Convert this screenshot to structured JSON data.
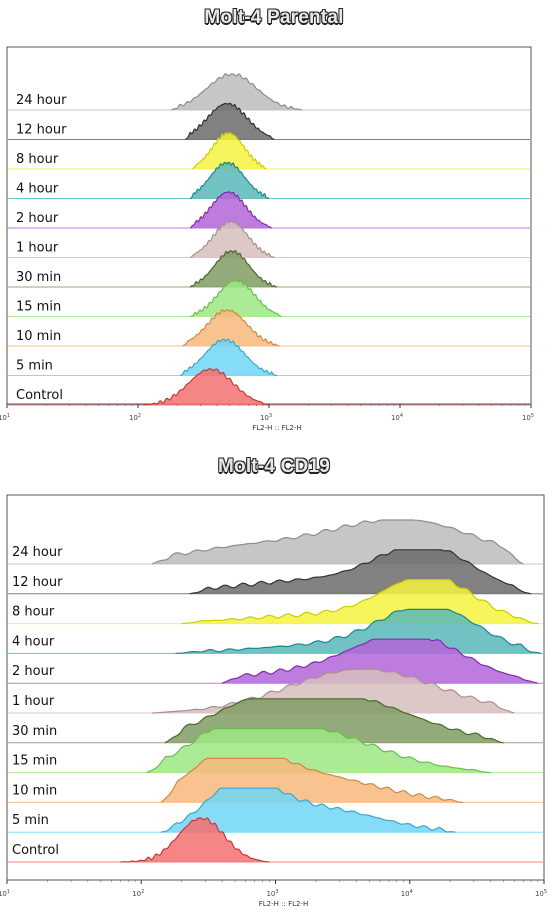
{
  "chart_data": [
    {
      "type": "area",
      "title": "Molt-4 Parental",
      "xlabel": "FL2-H :: FL2-H",
      "xscale": "log",
      "xlim": [
        10,
        100000
      ],
      "x_ticks": [
        {
          "value": 10,
          "base": "10",
          "exp": "1"
        },
        {
          "value": 100,
          "base": "10",
          "exp": "2"
        },
        {
          "value": 1000,
          "base": "10",
          "exp": "3"
        },
        {
          "value": 10000,
          "base": "10",
          "exp": "4"
        },
        {
          "value": 100000,
          "base": "10",
          "exp": "5"
        }
      ],
      "series": [
        {
          "name": "24 hour",
          "color": "#a6a6a6",
          "peaks": [
            {
              "mode": 520,
              "sigma": 0.19,
              "amp": 1.0
            }
          ],
          "range": [
            180,
            1800
          ]
        },
        {
          "name": "12 hour",
          "color": "#3a3a3a",
          "peaks": [
            {
              "mode": 480,
              "sigma": 0.15,
              "amp": 1.0
            }
          ],
          "range": [
            230,
            1100
          ]
        },
        {
          "name": "8 hour",
          "color": "#f0f000",
          "peaks": [
            {
              "mode": 490,
              "sigma": 0.12,
              "amp": 1.0
            }
          ],
          "range": [
            260,
            950
          ]
        },
        {
          "name": "4 hour",
          "color": "#20a0a0",
          "peaks": [
            {
              "mode": 480,
              "sigma": 0.13,
              "amp": 1.0
            }
          ],
          "range": [
            250,
            1000
          ]
        },
        {
          "name": "2 hour",
          "color": "#9932cc",
          "peaks": [
            {
              "mode": 490,
              "sigma": 0.13,
              "amp": 1.0
            }
          ],
          "range": [
            250,
            1050
          ]
        },
        {
          "name": "1 hour",
          "color": "#c9a8a8",
          "peaks": [
            {
              "mode": 510,
              "sigma": 0.13,
              "amp": 1.0
            }
          ],
          "range": [
            250,
            1100
          ]
        },
        {
          "name": "30 min",
          "color": "#557a30",
          "peaks": [
            {
              "mode": 520,
              "sigma": 0.13,
              "amp": 1.0
            }
          ],
          "range": [
            250,
            1150
          ]
        },
        {
          "name": "15 min",
          "color": "#7ee05a",
          "peaks": [
            {
              "mode": 560,
              "sigma": 0.14,
              "amp": 1.0
            }
          ],
          "range": [
            250,
            1250
          ]
        },
        {
          "name": "10 min",
          "color": "#f5a050",
          "peaks": [
            {
              "mode": 480,
              "sigma": 0.15,
              "amp": 1.0
            }
          ],
          "range": [
            220,
            1200
          ]
        },
        {
          "name": "5 min",
          "color": "#40c8f0",
          "peaks": [
            {
              "mode": 460,
              "sigma": 0.15,
              "amp": 1.0
            }
          ],
          "range": [
            210,
            1150
          ]
        },
        {
          "name": "Control",
          "color": "#f24040",
          "peaks": [
            {
              "mode": 360,
              "sigma": 0.17,
              "amp": 1.0
            }
          ],
          "range": [
            110,
            1000
          ]
        }
      ]
    },
    {
      "type": "area",
      "title": "Molt-4 CD19",
      "xlabel": "FL2-H :: FL2-H",
      "xscale": "log",
      "xlim": [
        10,
        100000
      ],
      "x_ticks": [
        {
          "value": 10,
          "base": "10",
          "exp": "1"
        },
        {
          "value": 100,
          "base": "10",
          "exp": "2"
        },
        {
          "value": 1000,
          "base": "10",
          "exp": "3"
        },
        {
          "value": 10000,
          "base": "10",
          "exp": "4"
        },
        {
          "value": 100000,
          "base": "10",
          "exp": "5"
        }
      ],
      "series": [
        {
          "name": "24 hour",
          "color": "#a6a6a6",
          "peaks": [
            {
              "mode": 9000,
              "sigma": 0.55,
              "amp": 1.0
            },
            {
              "mode": 600,
              "sigma": 0.5,
              "amp": 0.35
            }
          ],
          "range": [
            120,
            70000
          ]
        },
        {
          "name": "12 hour",
          "color": "#3a3a3a",
          "peaks": [
            {
              "mode": 13000,
              "sigma": 0.35,
              "amp": 1.0
            },
            {
              "mode": 2000,
              "sigma": 0.6,
              "amp": 0.3
            }
          ],
          "range": [
            230,
            80000
          ]
        },
        {
          "name": "8 hour",
          "color": "#f0f000",
          "peaks": [
            {
              "mode": 14000,
              "sigma": 0.33,
              "amp": 1.0
            },
            {
              "mode": 2500,
              "sigma": 0.6,
              "amp": 0.2
            }
          ],
          "range": [
            200,
            90000
          ]
        },
        {
          "name": "4 hour",
          "color": "#20a0a0",
          "peaks": [
            {
              "mode": 14000,
              "sigma": 0.35,
              "amp": 1.0
            },
            {
              "mode": 3000,
              "sigma": 0.6,
              "amp": 0.2
            }
          ],
          "range": [
            180,
            95000
          ]
        },
        {
          "name": "2 hour",
          "color": "#9932cc",
          "peaks": [
            {
              "mode": 10000,
              "sigma": 0.4,
              "amp": 1.0
            },
            {
              "mode": 2000,
              "sigma": 0.6,
              "amp": 0.25
            }
          ],
          "range": [
            400,
            90000
          ]
        },
        {
          "name": "1 hour",
          "color": "#c9a8a8",
          "peaks": [
            {
              "mode": 4500,
              "sigma": 0.55,
              "amp": 1.0
            }
          ],
          "range": [
            120,
            60000
          ]
        },
        {
          "name": "30 min",
          "color": "#557a30",
          "peaks": [
            {
              "mode": 3000,
              "sigma": 0.55,
              "amp": 1.0
            },
            {
              "mode": 700,
              "sigma": 0.4,
              "amp": 0.55
            }
          ],
          "range": [
            150,
            50000
          ]
        },
        {
          "name": "15 min",
          "color": "#7ee05a",
          "peaks": [
            {
              "mode": 1500,
              "sigma": 0.55,
              "amp": 1.0
            },
            {
              "mode": 500,
              "sigma": 0.3,
              "amp": 0.6
            }
          ],
          "range": [
            110,
            40000
          ]
        },
        {
          "name": "10 min",
          "color": "#f5a050",
          "peaks": [
            {
              "mode": 480,
              "sigma": 0.3,
              "amp": 1.0
            },
            {
              "mode": 1800,
              "sigma": 0.5,
              "amp": 0.6
            }
          ],
          "range": [
            140,
            25000
          ]
        },
        {
          "name": "5 min",
          "color": "#40c8f0",
          "peaks": [
            {
              "mode": 550,
              "sigma": 0.25,
              "amp": 1.0
            },
            {
              "mode": 2000,
              "sigma": 0.45,
              "amp": 0.55
            }
          ],
          "range": [
            140,
            22000
          ]
        },
        {
          "name": "Control",
          "color": "#f24040",
          "peaks": [
            {
              "mode": 280,
              "sigma": 0.17,
              "amp": 1.0
            }
          ],
          "range": [
            70,
            900
          ]
        }
      ]
    }
  ]
}
